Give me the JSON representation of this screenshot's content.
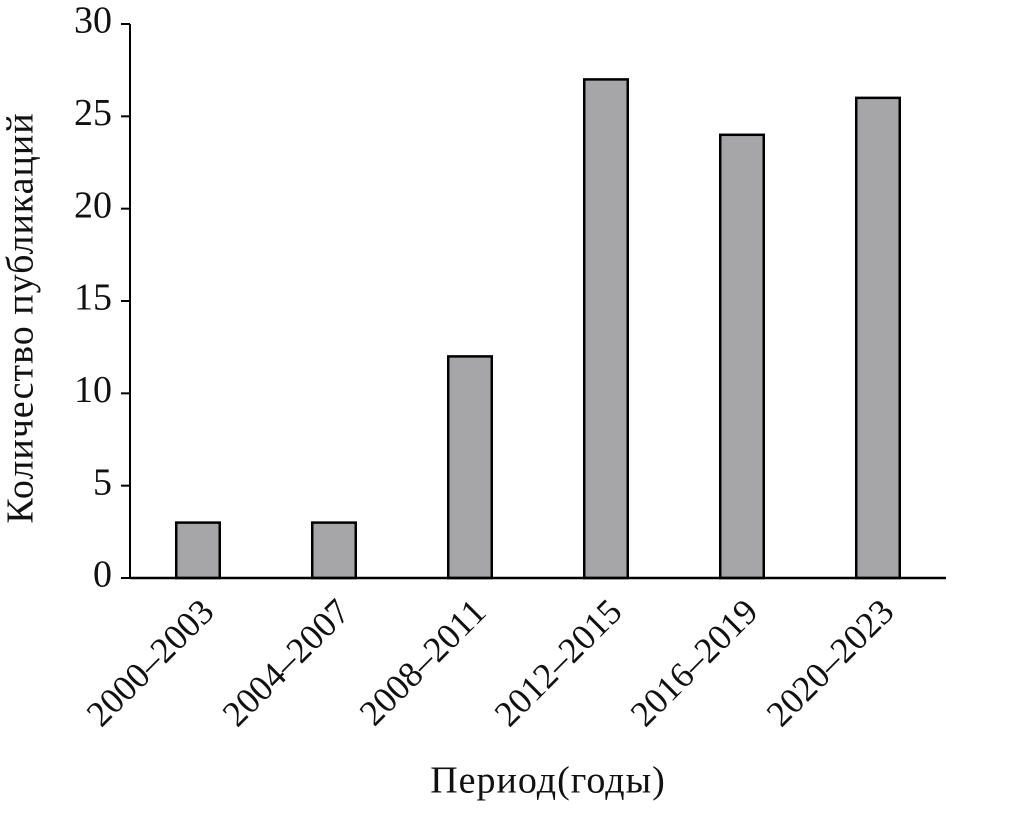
{
  "chart_data": {
    "type": "bar",
    "x_label": "Период(годы)",
    "y_label": "Количество публикаций",
    "categories": [
      "2000–2003",
      "2004–2007",
      "2008–2011",
      "2012–2015",
      "2016–2019",
      "2020–2023"
    ],
    "values": [
      3,
      3,
      12,
      27,
      24,
      26
    ],
    "color": "#a6a6a8",
    "ylim": [
      0,
      30
    ],
    "yticks": [
      0,
      5,
      10,
      15,
      20,
      25,
      30
    ]
  }
}
